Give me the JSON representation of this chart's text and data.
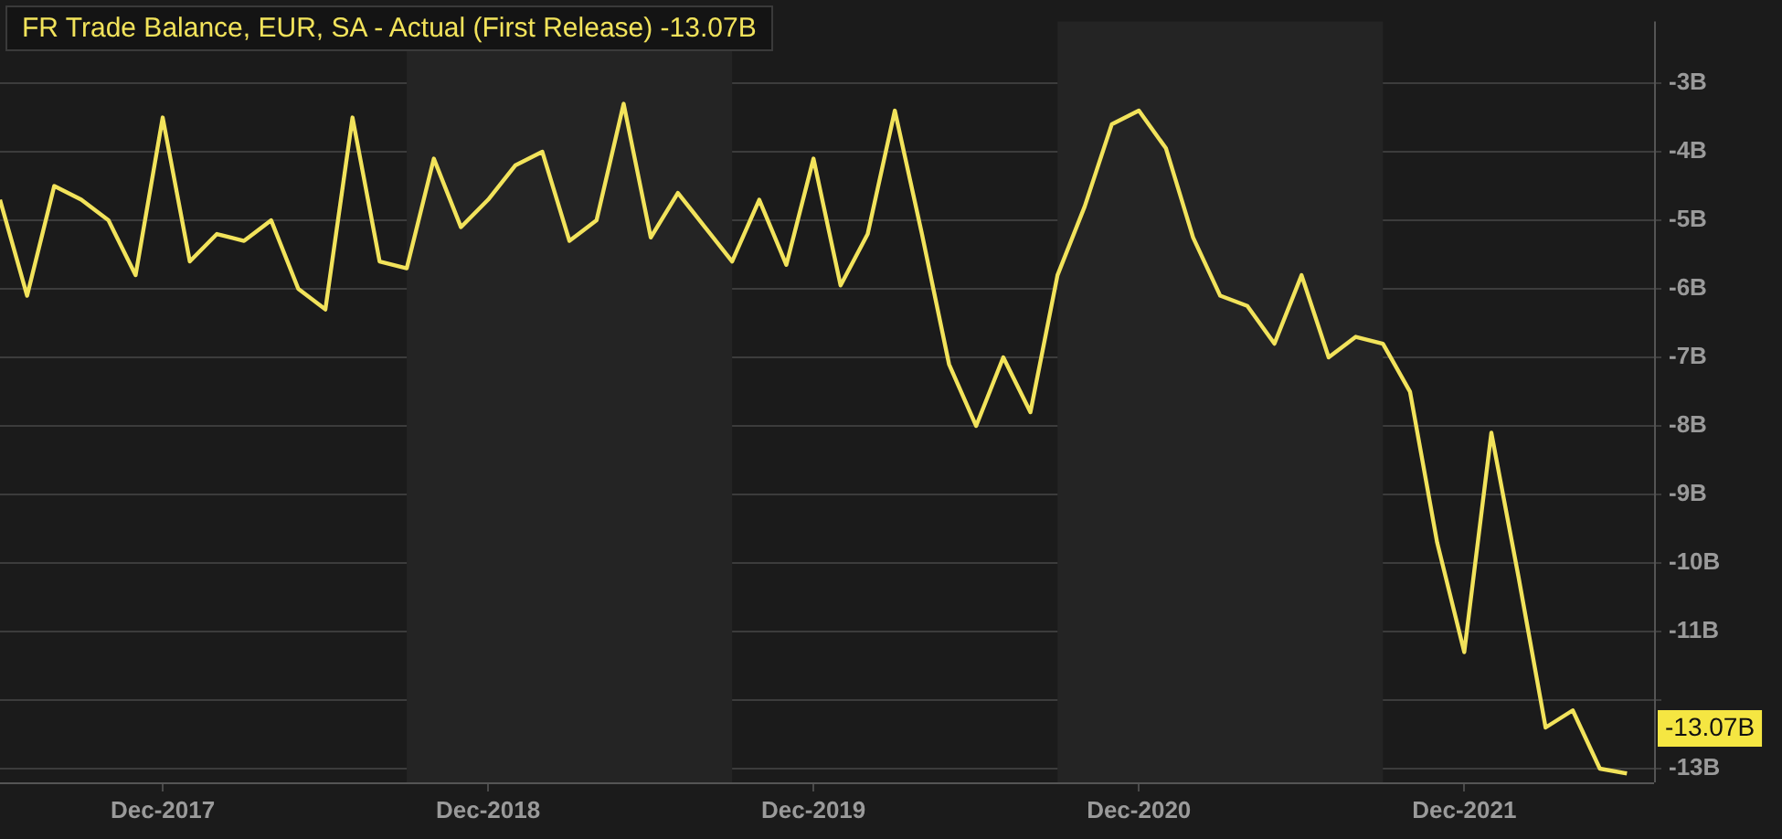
{
  "chart_data": {
    "type": "line",
    "title": "FR Trade Balance, EUR, SA - Actual (First Release) -13.07B",
    "x": [
      "2017-06",
      "2017-07",
      "2017-08",
      "2017-09",
      "2017-10",
      "2017-11",
      "2017-12",
      "2018-01",
      "2018-02",
      "2018-03",
      "2018-04",
      "2018-05",
      "2018-06",
      "2018-07",
      "2018-08",
      "2018-09",
      "2018-10",
      "2018-11",
      "2018-12",
      "2019-01",
      "2019-02",
      "2019-03",
      "2019-04",
      "2019-05",
      "2019-06",
      "2019-07",
      "2019-08",
      "2019-09",
      "2019-10",
      "2019-11",
      "2019-12",
      "2020-01",
      "2020-02",
      "2020-03",
      "2020-04",
      "2020-05",
      "2020-06",
      "2020-07",
      "2020-08",
      "2020-09",
      "2020-10",
      "2020-11",
      "2020-12",
      "2021-01",
      "2021-02",
      "2021-03",
      "2021-04",
      "2021-05",
      "2021-06",
      "2021-07",
      "2021-08",
      "2021-09",
      "2021-10",
      "2021-11",
      "2021-12",
      "2022-01",
      "2022-02",
      "2022-03",
      "2022-04",
      "2022-05",
      "2022-06"
    ],
    "series": [
      {
        "color": "#f2e35b",
        "values": [
          -4.7,
          -6.1,
          -4.5,
          -4.7,
          -5.0,
          -5.8,
          -3.5,
          -5.6,
          -5.2,
          -5.3,
          -5.0,
          -6.0,
          -6.3,
          -3.5,
          -5.6,
          -5.7,
          -4.1,
          -5.1,
          -4.7,
          -4.2,
          -4.0,
          -5.3,
          -5.0,
          -3.3,
          -5.25,
          -4.6,
          -5.1,
          -5.6,
          -4.7,
          -5.65,
          -4.1,
          -5.95,
          -5.2,
          -3.4,
          -5.2,
          -7.1,
          -8.0,
          -7.0,
          -7.8,
          -5.8,
          -4.8,
          -3.6,
          -3.4,
          -3.95,
          -5.25,
          -6.1,
          -6.25,
          -6.8,
          -5.8,
          -7.0,
          -6.7,
          -6.8,
          -7.5,
          -9.7,
          -11.3,
          -8.1,
          -10.2,
          -12.4,
          -12.15,
          -13.0,
          -13.07
        ]
      }
    ],
    "xlim": [
      "2017-06",
      "2022-07"
    ],
    "xticks": [
      {
        "value": "2017-12",
        "label": "Dec-2017"
      },
      {
        "value": "2018-12",
        "label": "Dec-2018"
      },
      {
        "value": "2019-12",
        "label": "Dec-2019"
      },
      {
        "value": "2020-12",
        "label": "Dec-2020"
      },
      {
        "value": "2021-12",
        "label": "Dec-2021"
      }
    ],
    "ylim": [
      -13.2,
      -2.1
    ],
    "yticks": [
      {
        "value": -3,
        "label": "-3B"
      },
      {
        "value": -4,
        "label": "-4B"
      },
      {
        "value": -5,
        "label": "-5B"
      },
      {
        "value": -6,
        "label": "-6B"
      },
      {
        "value": -7,
        "label": "-7B"
      },
      {
        "value": -8,
        "label": "-8B"
      },
      {
        "value": -9,
        "label": "-9B"
      },
      {
        "value": -10,
        "label": "-10B"
      },
      {
        "value": -11,
        "label": "-11B"
      },
      {
        "value": -12,
        "label": null
      },
      {
        "value": -13,
        "label": "-13B"
      }
    ],
    "bands": [
      {
        "axis": "x",
        "from": "2018-09",
        "to": "2019-09",
        "color": "#242424"
      },
      {
        "axis": "x",
        "from": "2020-09",
        "to": "2021-09",
        "color": "#242424"
      }
    ],
    "annotations": [
      "-13.07B"
    ],
    "grid": "y",
    "legend": false,
    "marker": "none",
    "line_style": "solid"
  }
}
